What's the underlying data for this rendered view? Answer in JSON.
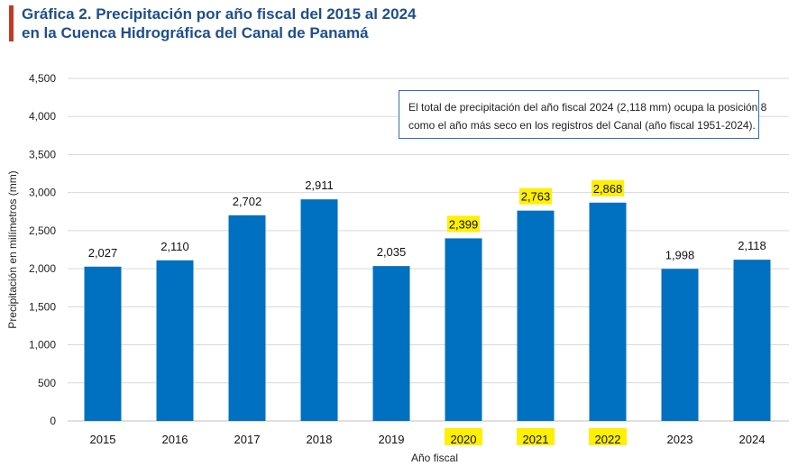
{
  "title": {
    "line1": "Gráfica 2. Precipitación por año fiscal del 2015 al 2024",
    "line2": "en la Cuenca Hidrográfica del Canal de Panamá"
  },
  "note": {
    "line1": "El total de precipitación del año fiscal 2024 (2,118 mm) ocupa la posición 8",
    "line2": "como el año más seco en los registros del Canal (año fiscal 1951-2024)."
  },
  "colors": {
    "bar": "#0070c0",
    "highlight": "#ffef00",
    "title": "#1f4e8c",
    "accent": "#c0392b"
  },
  "chart_data": {
    "type": "bar",
    "categories": [
      "2015",
      "2016",
      "2017",
      "2018",
      "2019",
      "2020",
      "2021",
      "2022",
      "2023",
      "2024"
    ],
    "values": [
      2027,
      2110,
      2702,
      2911,
      2035,
      2399,
      2763,
      2868,
      1998,
      2118
    ],
    "value_labels": [
      "2,027",
      "2,110",
      "2,702",
      "2,911",
      "2,035",
      "2,399",
      "2,763",
      "2,868",
      "1,998",
      "2,118"
    ],
    "highlighted": [
      "2020",
      "2021",
      "2022"
    ],
    "xlabel": "Año fiscal",
    "ylabel": "Precipitación en milímetros (mm)",
    "ylim": [
      0,
      4500
    ],
    "yticks": [
      0,
      500,
      1000,
      1500,
      2000,
      2500,
      3000,
      3500,
      4000,
      4500
    ],
    "ytick_labels": [
      "0",
      "500",
      "1,000",
      "1,500",
      "2,000",
      "2,500",
      "3,000",
      "3,500",
      "4,000",
      "4,500"
    ],
    "grid": true
  }
}
